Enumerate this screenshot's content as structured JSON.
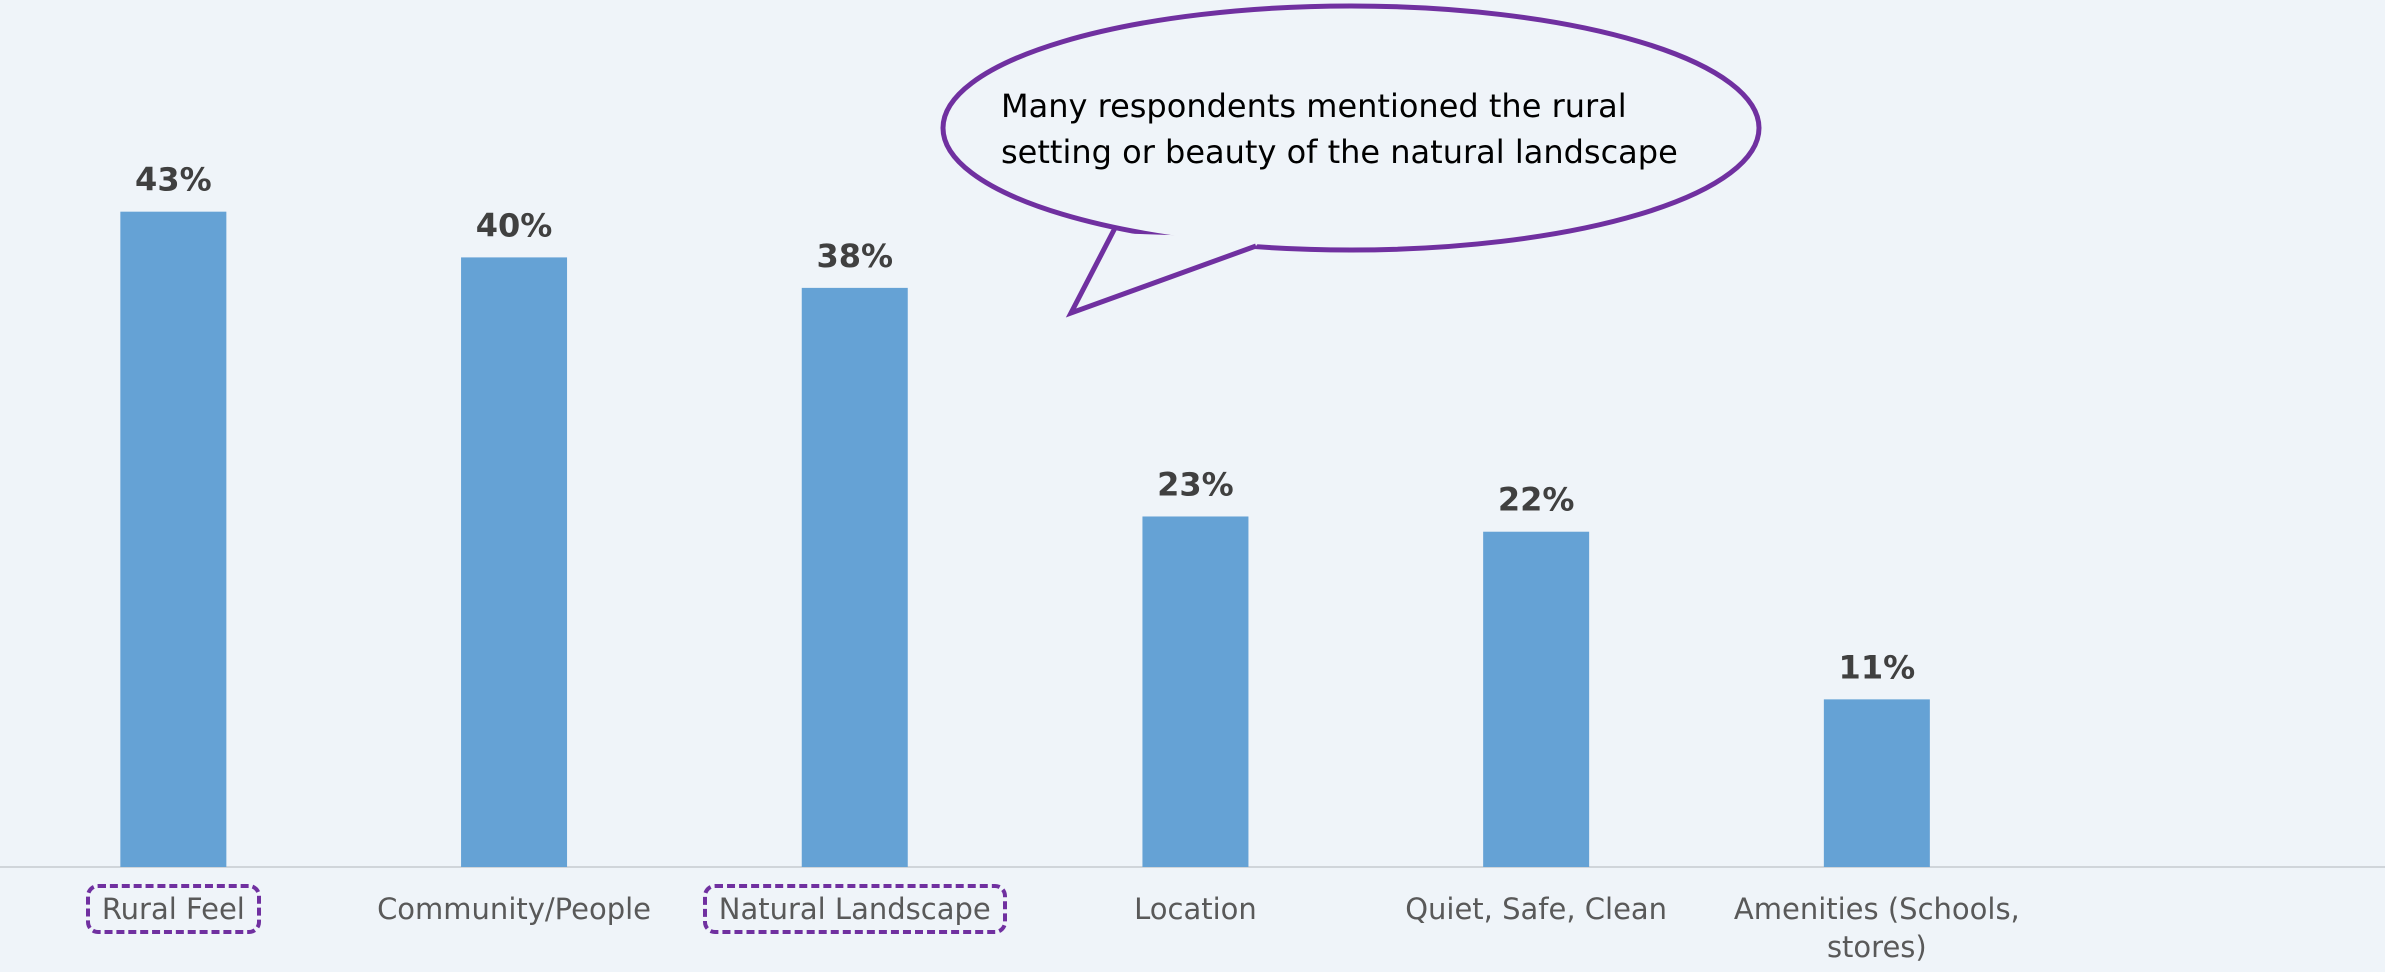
{
  "chart_data": {
    "type": "bar",
    "categories": [
      "Rural Feel",
      "Community/People",
      "Natural Landscape",
      "Location",
      "Quiet, Safe, Clean",
      "Amenities (Schools, stores)"
    ],
    "values": [
      43,
      40,
      38,
      23,
      22,
      11
    ],
    "value_labels": [
      "43%",
      "40%",
      "38%",
      "23%",
      "22%",
      "11%"
    ],
    "color": "#65a2d5",
    "ylim": [
      0,
      50
    ],
    "highlighted": [
      0,
      2
    ],
    "annotation": [
      "Many respondents mentioned the rural",
      "setting or beauty of the natural landscape"
    ]
  }
}
